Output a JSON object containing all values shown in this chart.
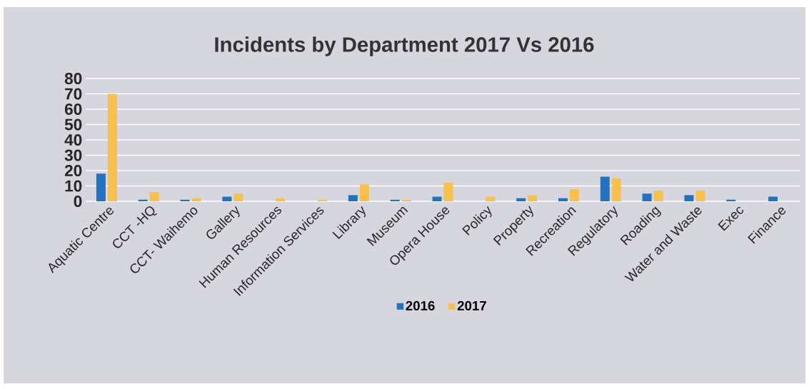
{
  "chart_data": {
    "type": "bar",
    "title": "Incidents by Department 2017 Vs 2016",
    "categories": [
      "Aquatic Centre",
      "CCT -HQ",
      "CCT- Waihemo",
      "Gallery",
      "Human Resources",
      "Information Services",
      "Library",
      "Museum",
      "Opera House",
      "Policy",
      "Property",
      "Recreation",
      "Regulatory",
      "Roading",
      "Water and Waste",
      "Exec",
      "Finance"
    ],
    "series": [
      {
        "name": "2016",
        "color": "#2272c3",
        "values": [
          18,
          1,
          1,
          3,
          0,
          0,
          4,
          1,
          3,
          0,
          2,
          2,
          16,
          5,
          4,
          1,
          3
        ]
      },
      {
        "name": "2017",
        "color": "#fbc04b",
        "values": [
          70,
          6,
          2,
          5,
          2,
          1,
          11,
          1,
          12,
          3,
          4,
          8,
          15,
          7,
          7,
          0,
          0
        ]
      }
    ],
    "ylim": [
      0,
      80
    ],
    "yticks": [
      0,
      10,
      20,
      30,
      40,
      50,
      60,
      70,
      80
    ],
    "grid": "y",
    "legend": "bottom"
  }
}
